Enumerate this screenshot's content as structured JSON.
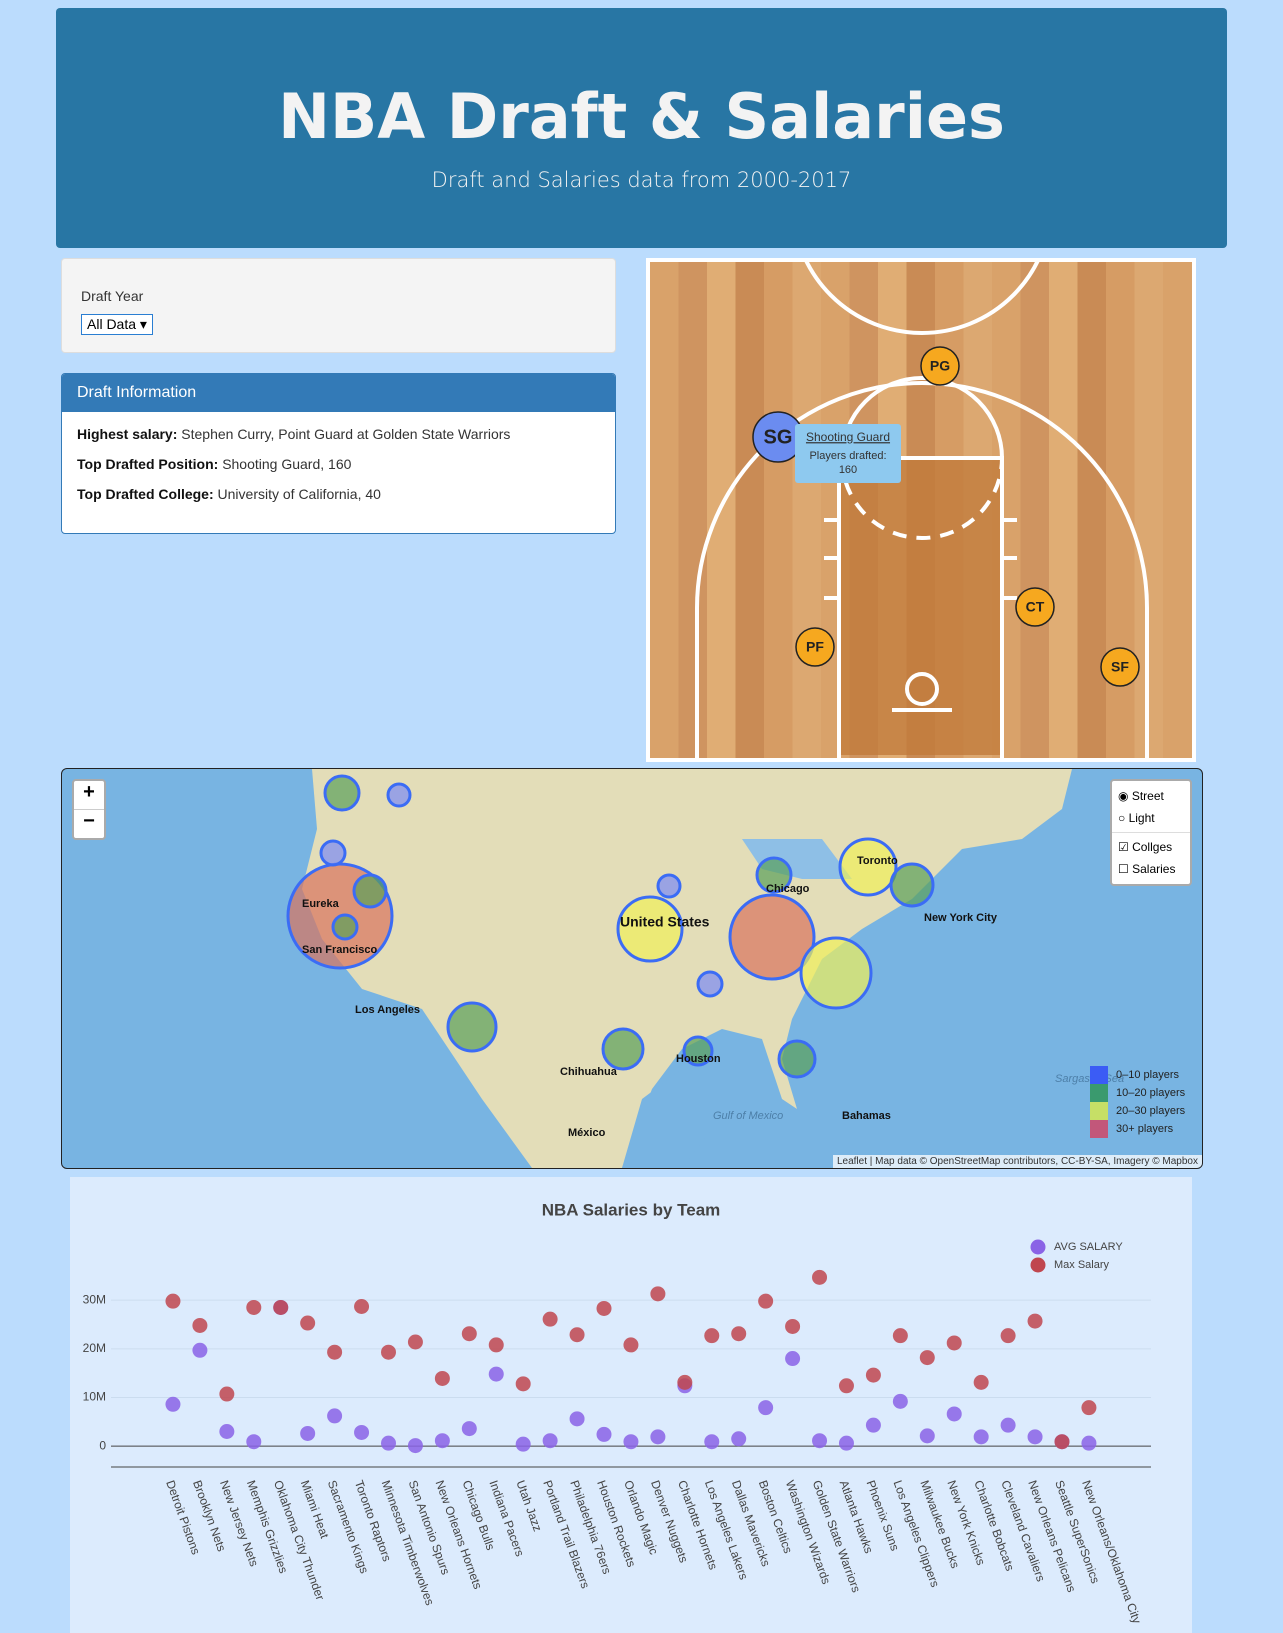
{
  "header": {
    "title": "NBA Draft & Salaries",
    "subtitle": "Draft and Salaries data from 2000-2017"
  },
  "filter": {
    "label": "Draft Year",
    "selected": "All Data"
  },
  "draft_info": {
    "title": "Draft Information",
    "rows": [
      {
        "label": "Highest salary:",
        "text": "Stephen Curry, Point Guard at Golden State Warriors"
      },
      {
        "label": "Top Drafted Position:",
        "text": "Shooting Guard, 160"
      },
      {
        "label": "Top Drafted College:",
        "text": "University of California, 40"
      }
    ]
  },
  "court": {
    "positions": [
      "PG",
      "SG",
      "CT",
      "PF",
      "SF"
    ],
    "tooltip": {
      "title": "Shooting Guard",
      "label": "Players drafted:",
      "value": 160
    }
  },
  "map": {
    "zoom_in": "+",
    "zoom_out": "−",
    "base_layers": [
      "Street",
      "Light"
    ],
    "overlays": [
      "Collges",
      "Salaries"
    ],
    "places": [
      "United States",
      "Toronto",
      "New York City",
      "San Francisco",
      "Los Angeles",
      "Eureka",
      "Houston",
      "Chihuahua",
      "México",
      "Gulf of Mexico",
      "Sargasso Sea",
      "Bahamas",
      "Chicago"
    ],
    "legend": [
      {
        "label": "0–10 players",
        "color": "#3b5cf5"
      },
      {
        "label": "10–20 players",
        "color": "#3a9a6e"
      },
      {
        "label": "20–30 players",
        "color": "#c6df66"
      },
      {
        "label": "30+ players",
        "color": "#c2577a"
      }
    ],
    "attribution": "Leaflet | Map data © OpenStreetMap contributors, CC-BY-SA, Imagery © Mapbox"
  },
  "chart_data": {
    "type": "scatter",
    "title": "NBA Salaries by Team",
    "categories": [
      "Detroit Pistons",
      "Brooklyn Nets",
      "New Jersey Nets",
      "Memphis Grizzlies",
      "Oklahoma City Thunder",
      "Miami Heat",
      "Sacramento Kings",
      "Toronto Raptors",
      "Minnesota Timberwolves",
      "San Antonio Spurs",
      "New Orleans Hornets",
      "Chicago Bulls",
      "Indiana Pacers",
      "Utah Jazz",
      "Portland Trail Blazers",
      "Philadelphia 76ers",
      "Houston Rockets",
      "Orlando Magic",
      "Denver Nuggets",
      "Charlotte Hornets",
      "Los Angeles Lakers",
      "Dallas Mavericks",
      "Boston Celtics",
      "Washington Wizards",
      "Golden State Warriors",
      "Atlanta Hawks",
      "Phoenix Suns",
      "Los Angeles Clippers",
      "Milwaukee Bucks",
      "New York Knicks",
      "Charlotte Bobcats",
      "Cleveland Cavaliers",
      "New Orleans Pelicans",
      "Seattle SuperSonics",
      "New Orleans/Oklahoma City"
    ],
    "series": [
      {
        "name": "AVG SALARY",
        "color": "#8a63e6",
        "values": [
          8.6,
          19.7,
          3.0,
          0.9,
          28.5,
          2.6,
          6.2,
          2.8,
          0.6,
          0.1,
          1.1,
          3.6,
          14.8,
          0.4,
          1.1,
          5.6,
          2.4,
          0.9,
          1.9,
          12.4,
          0.9,
          1.5,
          7.9,
          18.0,
          1.1,
          0.6,
          4.3,
          9.2,
          2.1,
          6.6,
          1.9,
          4.3,
          1.9,
          0.9,
          0.6
        ]
      },
      {
        "name": "Max Salary",
        "color": "#c0464f",
        "values": [
          29.8,
          24.8,
          10.7,
          28.5,
          28.5,
          25.3,
          19.3,
          28.7,
          19.3,
          21.4,
          13.9,
          23.1,
          20.8,
          12.8,
          26.1,
          22.9,
          28.3,
          20.8,
          31.3,
          13.1,
          22.7,
          23.1,
          29.8,
          24.6,
          34.7,
          12.4,
          14.6,
          22.7,
          18.2,
          21.2,
          13.1,
          22.7,
          25.7,
          0.9,
          7.9
        ]
      }
    ],
    "ylim": [
      -4.3,
      36
    ],
    "yticks": [
      {
        "value": 0,
        "label": "0"
      },
      {
        "value": 10,
        "label": "10M"
      },
      {
        "value": 20,
        "label": "20M"
      },
      {
        "value": 30,
        "label": "30M"
      }
    ],
    "grid": true,
    "legend": "top-right"
  }
}
